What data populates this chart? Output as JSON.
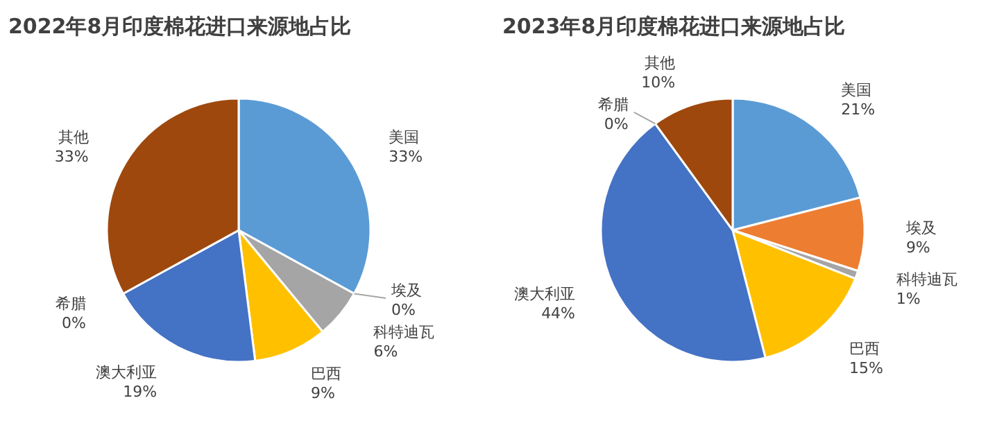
{
  "chart_data": [
    {
      "type": "pie",
      "title": "2022年8月印度棉花进口来源地占比",
      "categories": [
        "美国",
        "埃及",
        "科特迪瓦",
        "巴西",
        "澳大利亚",
        "希腊",
        "其他"
      ],
      "values": [
        33,
        0,
        6,
        9,
        19,
        0,
        33
      ],
      "value_labels": [
        "33%",
        "0%",
        "6%",
        "9%",
        "19%",
        "0%",
        "33%"
      ],
      "colors": [
        "#5b9bd5",
        "#ed7d31",
        "#a5a5a5",
        "#ffc000",
        "#4472c4",
        "#70ad47",
        "#9e480e"
      ]
    },
    {
      "type": "pie",
      "title": "2023年8月印度棉花进口来源地占比",
      "categories": [
        "美国",
        "埃及",
        "科特迪瓦",
        "巴西",
        "澳大利亚",
        "希腊",
        "其他"
      ],
      "values": [
        21,
        9,
        1,
        15,
        44,
        0,
        10
      ],
      "value_labels": [
        "21%",
        "9%",
        "1%",
        "15%",
        "44%",
        "0%",
        "10%"
      ],
      "colors": [
        "#5b9bd5",
        "#ed7d31",
        "#a5a5a5",
        "#ffc000",
        "#4472c4",
        "#70ad47",
        "#9e480e"
      ]
    }
  ]
}
